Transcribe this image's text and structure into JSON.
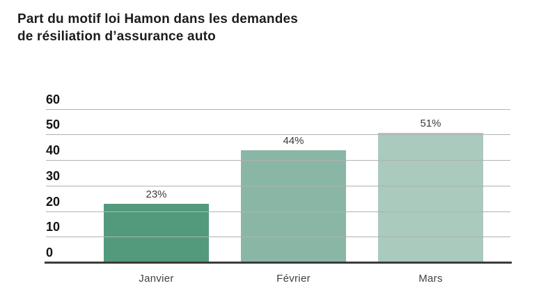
{
  "page": {
    "background": "#ffffff"
  },
  "chart_data": {
    "type": "bar",
    "title": "Part du motif loi Hamon dans les demandes de résiliation d’assurance auto",
    "title_lines": [
      "Part du motif loi Hamon dans les demandes",
      "de résiliation d’assurance auto"
    ],
    "categories": [
      "Janvier",
      "Février",
      "Mars"
    ],
    "values": [
      23,
      44,
      51
    ],
    "value_labels": [
      "23%",
      "44%",
      "51%"
    ],
    "bar_colors": [
      "#539a7c",
      "#8ab7a5",
      "#a9cabd"
    ],
    "y_ticks": [
      0,
      10,
      20,
      30,
      40,
      50,
      60
    ],
    "ylim": [
      0,
      60
    ],
    "xlabel": "",
    "ylabel": "",
    "grid": "horizontal",
    "legend": "none",
    "colors": {
      "grid_line": "#b1b1b1",
      "axis_line": "#3b3b3b",
      "tick_label": "#141414",
      "value_label": "#3b3b3b",
      "category_label": "#3f3f3f",
      "title": "#1c1c1c"
    }
  }
}
